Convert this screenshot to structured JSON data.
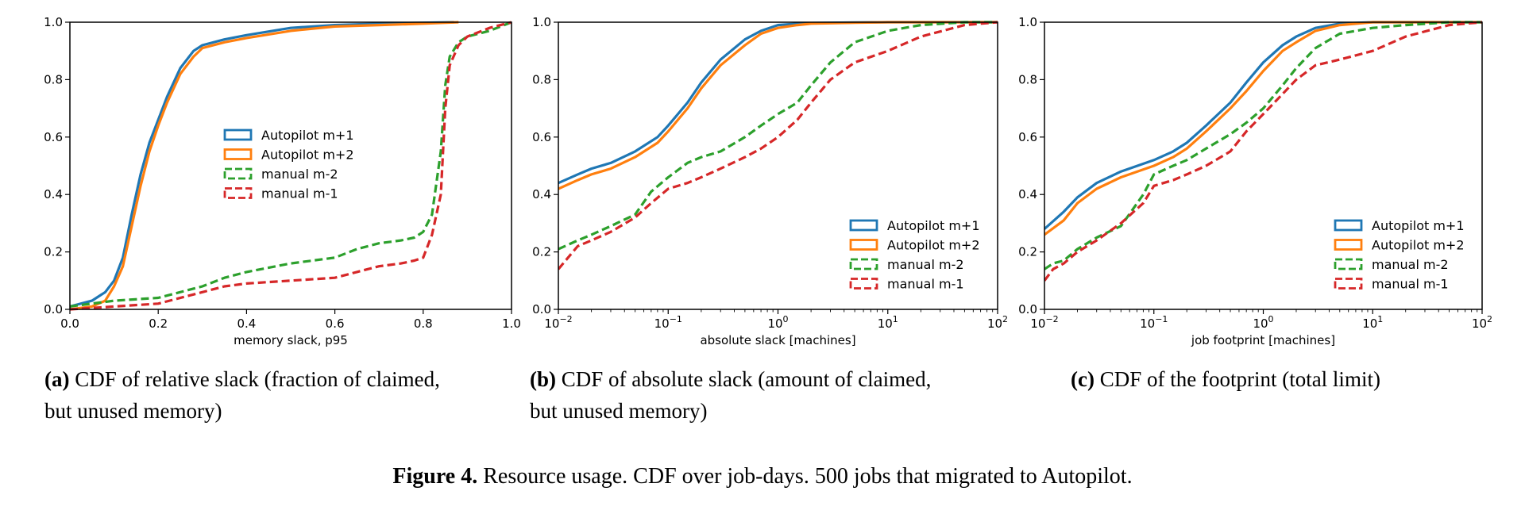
{
  "chart_data": [
    {
      "type": "line",
      "id": "a",
      "xscale": "linear",
      "xlabel": "memory slack, p95",
      "xlim": [
        0,
        1
      ],
      "ylim": [
        0,
        1
      ],
      "xticks": [
        0.0,
        0.2,
        0.4,
        0.6,
        0.8,
        1.0
      ],
      "xtick_labels": [
        "0.0",
        "0.2",
        "0.4",
        "0.6",
        "0.8",
        "1.0"
      ],
      "yticks": [
        0.0,
        0.2,
        0.4,
        0.6,
        0.8,
        1.0
      ],
      "ytick_labels": [
        "0.0",
        "0.2",
        "0.4",
        "0.6",
        "0.8",
        "1.0"
      ],
      "legend_position": "center",
      "series": [
        {
          "name": "Autopilot m+1",
          "color": "#1f77b4",
          "dashed": false,
          "x": [
            0.0,
            0.05,
            0.08,
            0.1,
            0.12,
            0.14,
            0.16,
            0.18,
            0.2,
            0.22,
            0.25,
            0.28,
            0.3,
            0.35,
            0.4,
            0.5,
            0.6,
            0.7,
            0.8,
            0.87
          ],
          "y": [
            0.01,
            0.03,
            0.06,
            0.1,
            0.18,
            0.33,
            0.47,
            0.58,
            0.66,
            0.74,
            0.84,
            0.9,
            0.92,
            0.94,
            0.955,
            0.98,
            0.99,
            0.995,
            0.998,
            1.0
          ]
        },
        {
          "name": "Autopilot m+2",
          "color": "#ff7f0e",
          "dashed": false,
          "x": [
            0.0,
            0.05,
            0.08,
            0.1,
            0.12,
            0.14,
            0.16,
            0.18,
            0.2,
            0.22,
            0.25,
            0.28,
            0.3,
            0.35,
            0.4,
            0.5,
            0.6,
            0.7,
            0.8,
            0.88
          ],
          "y": [
            0.0,
            0.01,
            0.03,
            0.08,
            0.15,
            0.29,
            0.43,
            0.55,
            0.64,
            0.72,
            0.82,
            0.88,
            0.91,
            0.93,
            0.945,
            0.97,
            0.985,
            0.99,
            0.995,
            1.0
          ]
        },
        {
          "name": "manual m-2",
          "color": "#2ca02c",
          "dashed": true,
          "x": [
            0.0,
            0.1,
            0.2,
            0.3,
            0.35,
            0.4,
            0.5,
            0.6,
            0.65,
            0.7,
            0.75,
            0.78,
            0.8,
            0.82,
            0.84,
            0.85,
            0.86,
            0.88,
            0.9,
            0.95,
            1.0
          ],
          "y": [
            0.01,
            0.03,
            0.04,
            0.08,
            0.11,
            0.13,
            0.16,
            0.18,
            0.21,
            0.23,
            0.24,
            0.25,
            0.27,
            0.33,
            0.55,
            0.78,
            0.88,
            0.93,
            0.95,
            0.97,
            1.0
          ]
        },
        {
          "name": "manual m-1",
          "color": "#d62728",
          "dashed": true,
          "x": [
            0.0,
            0.1,
            0.2,
            0.3,
            0.35,
            0.4,
            0.5,
            0.6,
            0.65,
            0.7,
            0.75,
            0.78,
            0.8,
            0.82,
            0.84,
            0.85,
            0.86,
            0.88,
            0.9,
            0.95,
            1.0
          ],
          "y": [
            0.0,
            0.01,
            0.02,
            0.06,
            0.08,
            0.09,
            0.1,
            0.11,
            0.13,
            0.15,
            0.16,
            0.17,
            0.18,
            0.26,
            0.4,
            0.7,
            0.85,
            0.92,
            0.95,
            0.98,
            1.0
          ]
        }
      ]
    },
    {
      "type": "line",
      "id": "b",
      "xscale": "log",
      "xlabel": "absolute slack [machines]",
      "xlim": [
        0.01,
        100
      ],
      "ylim": [
        0,
        1
      ],
      "xticks": [
        0.01,
        0.1,
        1,
        10,
        100
      ],
      "xtick_labels": [
        "10",
        "10",
        "10",
        "10",
        "10"
      ],
      "xtick_exponents": [
        "−2",
        "−1",
        "0",
        "1",
        "2"
      ],
      "yticks": [
        0.0,
        0.2,
        0.4,
        0.6,
        0.8,
        1.0
      ],
      "ytick_labels": [
        "0.0",
        "0.2",
        "0.4",
        "0.6",
        "0.8",
        "1.0"
      ],
      "legend_position": "lower right",
      "series": [
        {
          "name": "Autopilot m+1",
          "color": "#1f77b4",
          "dashed": false,
          "x": [
            0.01,
            0.015,
            0.02,
            0.03,
            0.05,
            0.08,
            0.1,
            0.15,
            0.2,
            0.3,
            0.5,
            0.7,
            1.0,
            1.5,
            2,
            5,
            10,
            50,
            100
          ],
          "y": [
            0.44,
            0.47,
            0.49,
            0.51,
            0.55,
            0.6,
            0.64,
            0.72,
            0.79,
            0.87,
            0.94,
            0.97,
            0.99,
            0.995,
            0.997,
            0.999,
            1.0,
            1.0,
            1.0
          ]
        },
        {
          "name": "Autopilot m+2",
          "color": "#ff7f0e",
          "dashed": false,
          "x": [
            0.01,
            0.015,
            0.02,
            0.03,
            0.05,
            0.08,
            0.1,
            0.15,
            0.2,
            0.3,
            0.5,
            0.7,
            1.0,
            1.5,
            2,
            5,
            10,
            50,
            100
          ],
          "y": [
            0.42,
            0.45,
            0.47,
            0.49,
            0.53,
            0.58,
            0.62,
            0.7,
            0.77,
            0.85,
            0.92,
            0.96,
            0.98,
            0.99,
            0.995,
            0.998,
            1.0,
            1.0,
            1.0
          ]
        },
        {
          "name": "manual m-2",
          "color": "#2ca02c",
          "dashed": true,
          "x": [
            0.01,
            0.015,
            0.02,
            0.03,
            0.05,
            0.07,
            0.1,
            0.15,
            0.2,
            0.3,
            0.5,
            0.7,
            1,
            1.5,
            2,
            3,
            5,
            10,
            20,
            50,
            100
          ],
          "y": [
            0.21,
            0.24,
            0.26,
            0.29,
            0.33,
            0.41,
            0.46,
            0.51,
            0.53,
            0.55,
            0.6,
            0.64,
            0.68,
            0.72,
            0.78,
            0.86,
            0.93,
            0.97,
            0.99,
            1.0,
            1.0
          ]
        },
        {
          "name": "manual m-1",
          "color": "#d62728",
          "dashed": true,
          "x": [
            0.01,
            0.015,
            0.02,
            0.03,
            0.05,
            0.07,
            0.1,
            0.15,
            0.2,
            0.3,
            0.5,
            0.7,
            1,
            1.5,
            2,
            3,
            5,
            10,
            20,
            50,
            100
          ],
          "y": [
            0.14,
            0.22,
            0.24,
            0.27,
            0.32,
            0.37,
            0.42,
            0.44,
            0.46,
            0.49,
            0.53,
            0.56,
            0.6,
            0.66,
            0.72,
            0.8,
            0.86,
            0.9,
            0.95,
            0.99,
            1.0
          ]
        }
      ]
    },
    {
      "type": "line",
      "id": "c",
      "xscale": "log",
      "xlabel": "job footprint [machines]",
      "xlim": [
        0.01,
        100
      ],
      "ylim": [
        0,
        1
      ],
      "xticks": [
        0.01,
        0.1,
        1,
        10,
        100
      ],
      "xtick_labels": [
        "10",
        "10",
        "10",
        "10",
        "10"
      ],
      "xtick_exponents": [
        "−2",
        "−1",
        "0",
        "1",
        "2"
      ],
      "yticks": [
        0.0,
        0.2,
        0.4,
        0.6,
        0.8,
        1.0
      ],
      "ytick_labels": [
        "0.0",
        "0.2",
        "0.4",
        "0.6",
        "0.8",
        "1.0"
      ],
      "legend_position": "lower right",
      "series": [
        {
          "name": "Autopilot m+1",
          "color": "#1f77b4",
          "dashed": false,
          "x": [
            0.01,
            0.015,
            0.02,
            0.03,
            0.05,
            0.1,
            0.15,
            0.2,
            0.3,
            0.5,
            0.7,
            1,
            1.5,
            2,
            3,
            5,
            10,
            100
          ],
          "y": [
            0.28,
            0.34,
            0.39,
            0.44,
            0.48,
            0.52,
            0.55,
            0.58,
            0.64,
            0.72,
            0.79,
            0.86,
            0.92,
            0.95,
            0.98,
            0.995,
            1.0,
            1.0
          ]
        },
        {
          "name": "Autopilot m+2",
          "color": "#ff7f0e",
          "dashed": false,
          "x": [
            0.01,
            0.015,
            0.02,
            0.03,
            0.05,
            0.1,
            0.15,
            0.2,
            0.3,
            0.5,
            0.7,
            1,
            1.5,
            2,
            3,
            5,
            10,
            100
          ],
          "y": [
            0.26,
            0.31,
            0.37,
            0.42,
            0.46,
            0.5,
            0.53,
            0.56,
            0.62,
            0.7,
            0.76,
            0.83,
            0.9,
            0.93,
            0.97,
            0.99,
            1.0,
            1.0
          ]
        },
        {
          "name": "manual m-2",
          "color": "#2ca02c",
          "dashed": true,
          "x": [
            0.01,
            0.012,
            0.015,
            0.02,
            0.03,
            0.05,
            0.08,
            0.1,
            0.15,
            0.2,
            0.3,
            0.5,
            0.7,
            1,
            1.5,
            2,
            3,
            5,
            10,
            20,
            50,
            100
          ],
          "y": [
            0.14,
            0.16,
            0.17,
            0.21,
            0.25,
            0.29,
            0.4,
            0.47,
            0.5,
            0.52,
            0.56,
            0.61,
            0.65,
            0.7,
            0.78,
            0.84,
            0.91,
            0.96,
            0.98,
            0.99,
            1.0,
            1.0
          ]
        },
        {
          "name": "manual m-1",
          "color": "#d62728",
          "dashed": true,
          "x": [
            0.01,
            0.012,
            0.015,
            0.02,
            0.03,
            0.05,
            0.08,
            0.1,
            0.15,
            0.2,
            0.3,
            0.5,
            0.7,
            1,
            1.5,
            2,
            3,
            5,
            10,
            20,
            50,
            100
          ],
          "y": [
            0.1,
            0.14,
            0.16,
            0.2,
            0.24,
            0.3,
            0.37,
            0.43,
            0.45,
            0.47,
            0.5,
            0.55,
            0.62,
            0.68,
            0.75,
            0.8,
            0.85,
            0.87,
            0.9,
            0.95,
            0.99,
            1.0
          ]
        }
      ]
    }
  ],
  "captions": {
    "a": {
      "tag": "(a)",
      "line1": " CDF of relative slack (fraction of claimed,",
      "line2": "but unused memory)"
    },
    "b": {
      "tag": "(b)",
      "line1": " CDF of absolute slack (amount of claimed,",
      "line2": "but unused memory)"
    },
    "c": {
      "tag": "(c)",
      "line1": " CDF of the footprint (total limit)"
    }
  },
  "figure_caption": {
    "tag": "Figure 4.",
    "text": " Resource usage. CDF over job-days. 500 jobs that migrated to Autopilot."
  }
}
